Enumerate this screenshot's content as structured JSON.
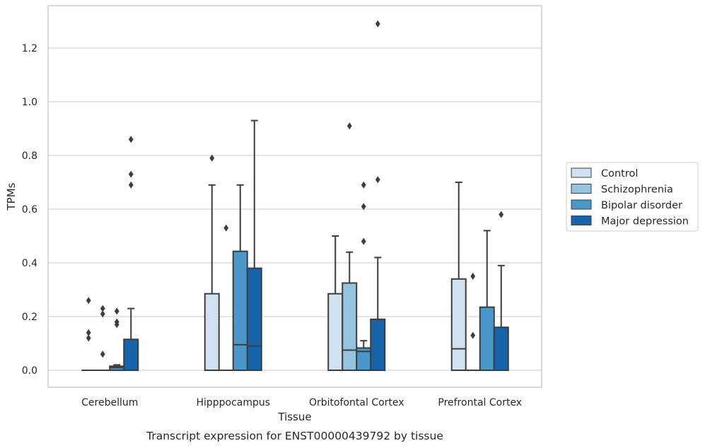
{
  "caption": "Transcript expression for ENST00000439792 by tissue",
  "chart_data": {
    "type": "box",
    "title": "",
    "xlabel": "Tissue",
    "ylabel": "TPMs",
    "ylim": [
      -0.065,
      1.365
    ],
    "yticks": [
      0.0,
      0.2,
      0.4,
      0.6,
      0.8,
      1.0,
      1.2
    ],
    "ytick_labels": [
      "0.0",
      "0.2",
      "0.4",
      "0.6",
      "0.8",
      "1.0",
      "1.2"
    ],
    "grid": "horizontal",
    "legend_placement": "right",
    "categories": [
      "Cerebellum",
      "Hipppocampus",
      "Orbitofontal Cortex",
      "Prefrontal Cortex"
    ],
    "series": [
      {
        "name": "Control",
        "color": "#d0e1f2",
        "boxes": [
          {
            "q1": 0,
            "median": 0,
            "q3": 0,
            "whislo": 0,
            "whishi": 0,
            "fliers": [
              0.26,
              0.14,
              0.12
            ]
          },
          {
            "q1": 0,
            "median": 0,
            "q3": 0.285,
            "whislo": 0,
            "whishi": 0.69,
            "fliers": [
              0.79
            ]
          },
          {
            "q1": 0,
            "median": 0,
            "q3": 0.285,
            "whislo": 0,
            "whishi": 0.5,
            "fliers": []
          },
          {
            "q1": 0,
            "median": 0.08,
            "q3": 0.34,
            "whislo": 0,
            "whishi": 0.7,
            "fliers": []
          }
        ]
      },
      {
        "name": "Schizophrenia",
        "color": "#94c4df",
        "boxes": [
          {
            "q1": 0,
            "median": 0,
            "q3": 0,
            "whislo": 0,
            "whishi": 0,
            "fliers": [
              0.23,
              0.21,
              0.06
            ]
          },
          {
            "q1": 0,
            "median": 0,
            "q3": 0,
            "whislo": 0,
            "whishi": 0,
            "fliers": [
              0.53
            ]
          },
          {
            "q1": 0,
            "median": 0.075,
            "q3": 0.325,
            "whislo": 0,
            "whishi": 0.44,
            "fliers": [
              0.91
            ]
          },
          {
            "q1": 0,
            "median": 0,
            "q3": 0,
            "whislo": 0,
            "whishi": 0,
            "fliers": [
              0.35,
              0.13
            ]
          }
        ]
      },
      {
        "name": "Bipolar disorder",
        "color": "#4a98c9",
        "boxes": [
          {
            "q1": 0,
            "median": 0.01,
            "q3": 0.015,
            "whislo": 0,
            "whishi": 0.02,
            "fliers": [
              0.22,
              0.18,
              0.17
            ]
          },
          {
            "q1": 0,
            "median": 0.095,
            "q3": 0.443,
            "whislo": 0,
            "whishi": 0.69,
            "fliers": []
          },
          {
            "q1": 0,
            "median": 0.07,
            "q3": 0.083,
            "whislo": 0,
            "whishi": 0.11,
            "fliers": [
              0.69,
              0.61,
              0.48
            ]
          },
          {
            "q1": 0,
            "median": 0,
            "q3": 0.235,
            "whislo": 0,
            "whishi": 0.52,
            "fliers": []
          }
        ]
      },
      {
        "name": "Major depression",
        "color": "#1764ab",
        "boxes": [
          {
            "q1": 0,
            "median": 0,
            "q3": 0.115,
            "whislo": 0,
            "whishi": 0.23,
            "fliers": [
              0.86,
              0.73,
              0.69
            ]
          },
          {
            "q1": 0,
            "median": 0.09,
            "q3": 0.38,
            "whislo": 0,
            "whishi": 0.93,
            "fliers": []
          },
          {
            "q1": 0,
            "median": 0,
            "q3": 0.19,
            "whislo": 0,
            "whishi": 0.42,
            "fliers": [
              1.29,
              0.71
            ]
          },
          {
            "q1": 0,
            "median": 0,
            "q3": 0.16,
            "whislo": 0,
            "whishi": 0.39,
            "fliers": [
              0.58
            ]
          }
        ]
      }
    ]
  }
}
